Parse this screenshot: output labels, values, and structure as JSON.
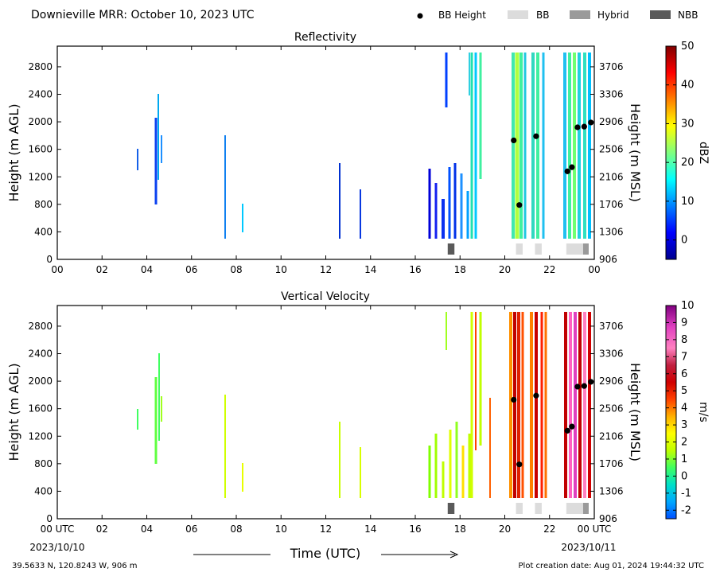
{
  "header": {
    "title": "Downieville MRR:  October 10, 2023 UTC",
    "legend": [
      {
        "label": "BB Height",
        "kind": "dot",
        "color": "#000000"
      },
      {
        "label": "BB",
        "kind": "box",
        "color": "#dcdcdc"
      },
      {
        "label": "Hybrid",
        "kind": "box",
        "color": "#9a9a9a"
      },
      {
        "label": "NBB",
        "kind": "box",
        "color": "#5a5a5a"
      }
    ]
  },
  "footer": {
    "location": "39.5633 N, 120.8243 W, 906 m",
    "created": "Plot creation date: Aug 01, 2024 19:44:32 UTC",
    "time_label": "Time (UTC)",
    "start_date": "2023/10/10",
    "end_date": "2023/10/11"
  },
  "chart_data": [
    {
      "type": "heatmap",
      "title": "Reflectivity",
      "xlabel": "",
      "ylabel": "Height (m AGL)",
      "ylabel_right": "Height (m MSL)",
      "xlim": [
        0,
        24
      ],
      "ylim": [
        0,
        3100
      ],
      "x_ticks": [
        "00",
        "02",
        "04",
        "06",
        "08",
        "10",
        "12",
        "14",
        "16",
        "18",
        "20",
        "22",
        "00"
      ],
      "y_ticks": [
        "0",
        "400",
        "800",
        "1200",
        "1600",
        "2000",
        "2400",
        "2800"
      ],
      "y_ticks_right": [
        "906",
        "1306",
        "1706",
        "2106",
        "2506",
        "2906",
        "3306",
        "3706"
      ],
      "colorbar": {
        "label": "dBZ",
        "min": -5,
        "max": 50,
        "ticks": [
          "0",
          "10",
          "20",
          "30",
          "40",
          "50"
        ],
        "tick_values": [
          0,
          10,
          20,
          30,
          40,
          50
        ]
      },
      "bb_height_points": [
        {
          "time": 20.4,
          "height": 1730
        },
        {
          "time": 20.65,
          "height": 790
        },
        {
          "time": 21.4,
          "height": 1790
        },
        {
          "time": 22.8,
          "height": 1280
        },
        {
          "time": 23.0,
          "height": 1340
        },
        {
          "time": 23.25,
          "height": 1920
        },
        {
          "time": 23.55,
          "height": 1930
        },
        {
          "time": 23.85,
          "height": 1990
        }
      ],
      "bb_classification": [
        {
          "start": 17.45,
          "end": 17.75,
          "class": "NBB"
        },
        {
          "start": 20.5,
          "end": 20.8,
          "class": "BB"
        },
        {
          "start": 21.35,
          "end": 21.65,
          "class": "BB"
        },
        {
          "start": 22.75,
          "end": 23.5,
          "class": "BB"
        },
        {
          "start": 23.5,
          "end": 23.75,
          "class": "Hybrid"
        }
      ]
    },
    {
      "type": "heatmap",
      "title": "Vertical Velocity",
      "xlabel": "Time (UTC)",
      "ylabel": "Height (m AGL)",
      "ylabel_right": "Height (m MSL)",
      "xlim": [
        0,
        24
      ],
      "ylim": [
        0,
        3100
      ],
      "x_ticks": [
        "00 UTC",
        "02",
        "04",
        "06",
        "08",
        "10",
        "12",
        "14",
        "16",
        "18",
        "20",
        "22",
        "00 UTC"
      ],
      "y_ticks": [
        "0",
        "400",
        "800",
        "1200",
        "1600",
        "2000",
        "2400",
        "2800"
      ],
      "y_ticks_right": [
        "906",
        "1306",
        "1706",
        "2106",
        "2506",
        "2906",
        "3306",
        "3706"
      ],
      "colorbar": {
        "label": "m/s",
        "min": -2.5,
        "max": 10,
        "ticks": [
          "-2",
          "-1",
          "0",
          "1",
          "2",
          "3",
          "4",
          "5",
          "6",
          "7",
          "8",
          "9",
          "10"
        ],
        "tick_values": [
          -2,
          -1,
          0,
          1,
          2,
          3,
          4,
          5,
          6,
          7,
          8,
          9,
          10
        ]
      },
      "bb_height_points": [
        {
          "time": 20.4,
          "height": 1730
        },
        {
          "time": 20.65,
          "height": 790
        },
        {
          "time": 21.4,
          "height": 1790
        },
        {
          "time": 22.8,
          "height": 1280
        },
        {
          "time": 23.0,
          "height": 1340
        },
        {
          "time": 23.25,
          "height": 1920
        },
        {
          "time": 23.55,
          "height": 1930
        },
        {
          "time": 23.85,
          "height": 1990
        }
      ],
      "bb_classification": [
        {
          "start": 17.45,
          "end": 17.75,
          "class": "NBB"
        },
        {
          "start": 20.5,
          "end": 20.8,
          "class": "BB"
        },
        {
          "start": 21.35,
          "end": 21.65,
          "class": "BB"
        },
        {
          "start": 22.75,
          "end": 23.5,
          "class": "BB"
        },
        {
          "start": 23.5,
          "end": 23.75,
          "class": "Hybrid"
        }
      ]
    }
  ]
}
